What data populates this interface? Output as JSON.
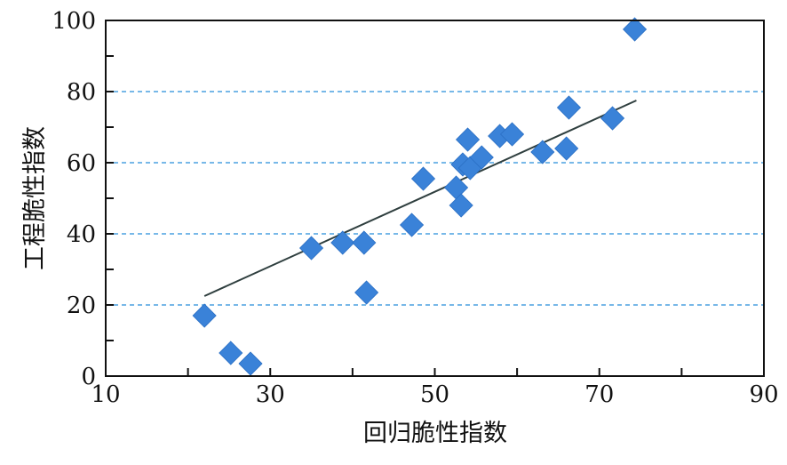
{
  "chart_data": {
    "type": "scatter",
    "xlabel": "回归脆性指数",
    "ylabel": "工程脆性指数",
    "xlim": [
      10,
      90
    ],
    "ylim": [
      0,
      100
    ],
    "x_ticks": [
      "10",
      "30",
      "50",
      "70",
      "90"
    ],
    "y_ticks": [
      "0",
      "20",
      "40",
      "60",
      "80",
      "100"
    ],
    "y_gridlines": [
      20,
      40,
      60,
      80
    ],
    "grid": "horizontal dashed",
    "marker": "diamond",
    "series": [
      {
        "points": [
          [
            22.0,
            17
          ],
          [
            25.2,
            6.5
          ],
          [
            27.6,
            3.5
          ],
          [
            35.0,
            36
          ],
          [
            38.8,
            37.5
          ],
          [
            41.4,
            37.5
          ],
          [
            41.7,
            23.5
          ],
          [
            47.2,
            42.5
          ],
          [
            48.6,
            55.5
          ],
          [
            52.6,
            53
          ],
          [
            53.2,
            48
          ],
          [
            53.4,
            59.5
          ],
          [
            54.0,
            66.5
          ],
          [
            54.3,
            58.5
          ],
          [
            55.7,
            61.5
          ],
          [
            57.9,
            67.5
          ],
          [
            59.4,
            68
          ],
          [
            63.1,
            63
          ],
          [
            66.0,
            64
          ],
          [
            66.3,
            75.5
          ],
          [
            71.6,
            72.5
          ],
          [
            74.3,
            97.5
          ]
        ],
        "color": "#3a82d8"
      }
    ],
    "trendline": {
      "x": [
        22,
        74.5
      ],
      "y": [
        22.5,
        77.5
      ],
      "color": "#2f3f3f"
    }
  }
}
